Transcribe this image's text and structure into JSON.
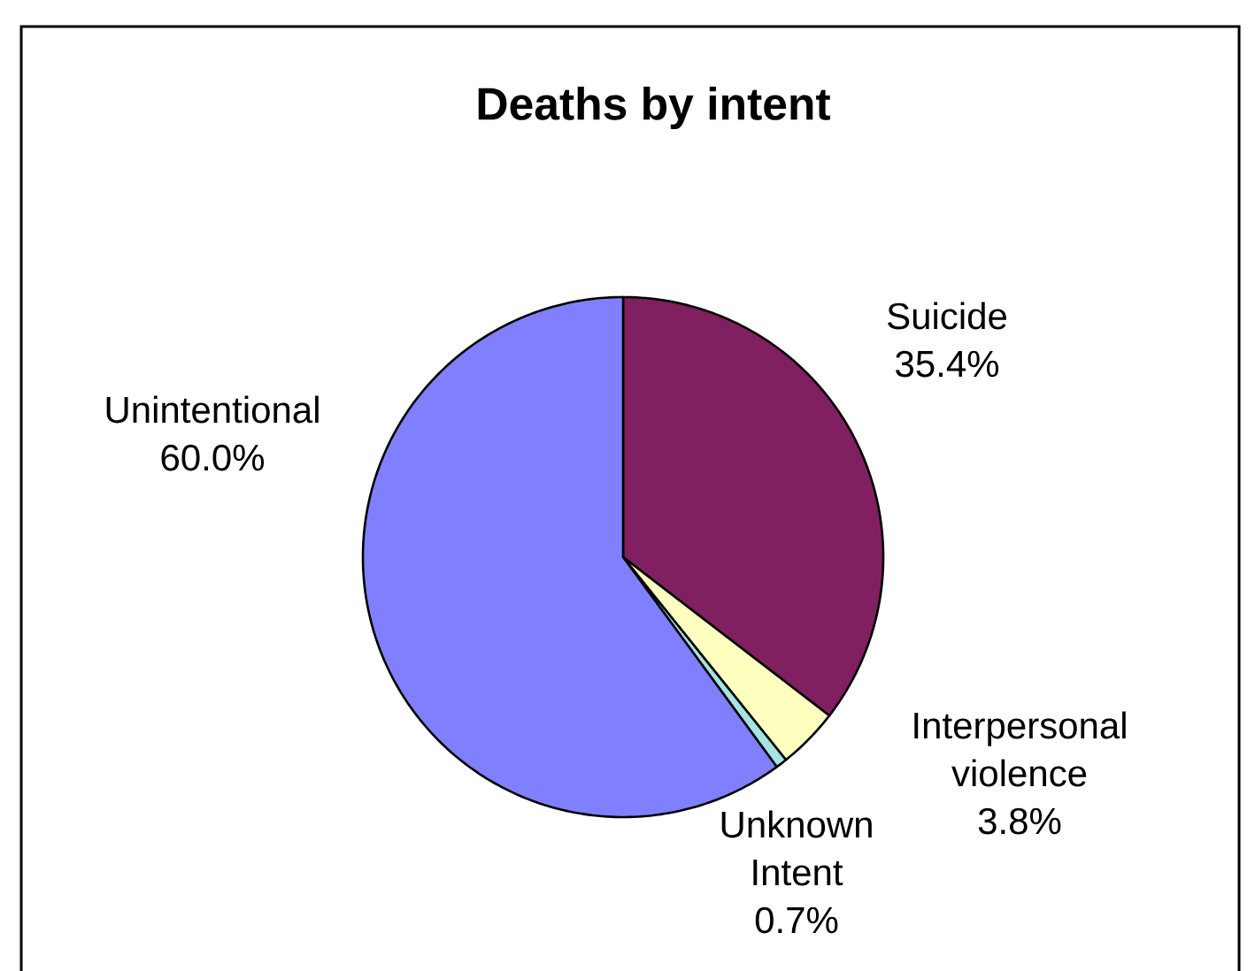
{
  "chart_data": {
    "type": "pie",
    "title": "Deaths by intent",
    "categories": [
      "Suicide",
      "Interpersonal violence",
      "Unknown Intent",
      "Unintentional"
    ],
    "values": [
      35.4,
      3.8,
      0.7,
      60.0
    ],
    "colors": [
      "#802060",
      "#ffffc0",
      "#a6e3e3",
      "#8080ff"
    ],
    "value_labels": [
      "35.4%",
      "3.8%",
      "0.7%",
      "60.0%"
    ]
  }
}
